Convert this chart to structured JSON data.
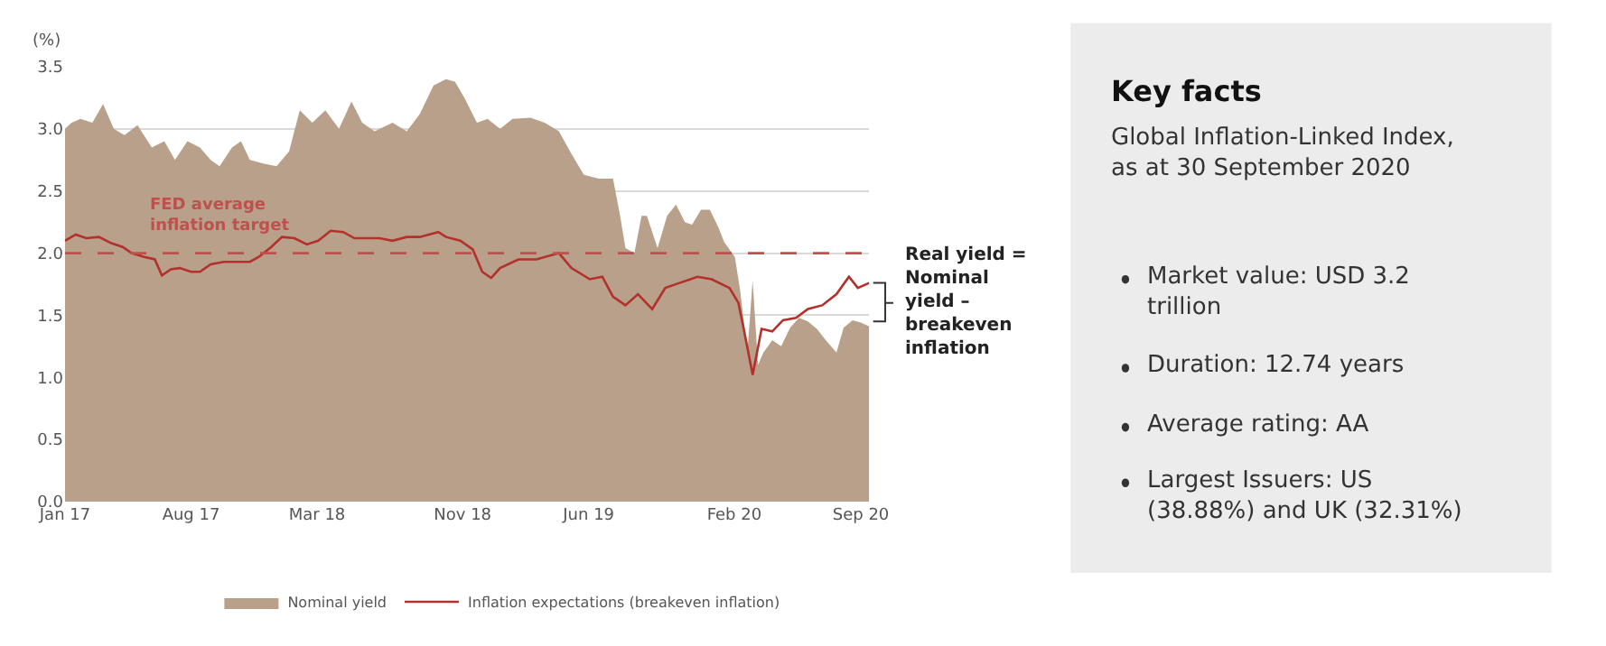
{
  "chart_data": [
    {
      "type": "area",
      "ylabel": "(%)",
      "xlim": [
        "2017-01-01",
        "2020-09-15"
      ],
      "xticks": [
        {
          "value": "2017-01-01",
          "label": "Jan 17"
        },
        {
          "value": "2017-08-01",
          "label": "Aug 17"
        },
        {
          "value": "2018-03-01",
          "label": "Mar 18"
        },
        {
          "value": "2018-11-01",
          "label": "Nov 18"
        },
        {
          "value": "2019-06-01",
          "label": "Jun 19"
        },
        {
          "value": "2020-02-01",
          "label": "Feb 20"
        },
        {
          "value": "2020-09-01",
          "label": "Sep 20"
        }
      ],
      "ylim": [
        0,
        3.5
      ],
      "yticks": [
        {
          "value": 0,
          "label": "0.0"
        },
        {
          "value": 0.5,
          "label": "0.5"
        },
        {
          "value": 1,
          "label": "1.0"
        },
        {
          "value": 1.5,
          "label": "1.5"
        },
        {
          "value": 2,
          "label": "2.0"
        },
        {
          "value": 2.5,
          "label": "2.5"
        },
        {
          "value": 3,
          "label": "3.0"
        },
        {
          "value": 3.5,
          "label": "3.5"
        }
      ],
      "grid": "y",
      "legend": "bottom",
      "series": [
        {
          "name": "Nominal yield",
          "color": "#b8a08a",
          "x": [
            "2017-01-01",
            "2017-01-12",
            "2017-01-27",
            "2017-02-16",
            "2017-03-06",
            "2017-03-24",
            "2017-04-11",
            "2017-05-03",
            "2017-05-27",
            "2017-06-17",
            "2017-07-05",
            "2017-07-26",
            "2017-08-16",
            "2017-09-03",
            "2017-09-18",
            "2017-10-09",
            "2017-10-24",
            "2017-11-08",
            "2017-12-02",
            "2017-12-23",
            "2018-01-13",
            "2018-01-31",
            "2018-02-21",
            "2018-03-15",
            "2018-04-07",
            "2018-04-28",
            "2018-05-16",
            "2018-06-06",
            "2018-07-06",
            "2018-07-30",
            "2018-08-21",
            "2018-09-13",
            "2018-10-04",
            "2018-10-19",
            "2018-11-04",
            "2018-11-25",
            "2018-12-13",
            "2019-01-03",
            "2019-01-24",
            "2019-02-23",
            "2019-03-19",
            "2019-04-12",
            "2019-05-03",
            "2019-05-24",
            "2019-06-18",
            "2019-07-12",
            "2019-07-24",
            "2019-08-02",
            "2019-08-17",
            "2019-08-29",
            "2019-09-07",
            "2019-09-25",
            "2019-10-11",
            "2019-10-26",
            "2019-11-10",
            "2019-11-22",
            "2019-12-07",
            "2019-12-22",
            "2020-01-06",
            "2020-01-15",
            "2020-02-02",
            "2020-02-11",
            "2020-02-23",
            "2020-03-03",
            "2020-03-12",
            "2020-03-21",
            "2020-04-05",
            "2020-04-20",
            "2020-05-05",
            "2020-05-20",
            "2020-06-04",
            "2020-06-19",
            "2020-07-04",
            "2020-07-22",
            "2020-08-03",
            "2020-08-18",
            "2020-09-02",
            "2020-09-15"
          ],
          "values": [
            3.0,
            3.05,
            3.08,
            3.05,
            3.2,
            3.0,
            2.95,
            3.03,
            2.85,
            2.9,
            2.75,
            2.9,
            2.85,
            2.75,
            2.7,
            2.85,
            2.9,
            2.75,
            2.72,
            2.7,
            2.82,
            3.15,
            3.05,
            3.15,
            3.0,
            3.22,
            3.05,
            2.98,
            3.05,
            2.98,
            3.12,
            3.35,
            3.4,
            3.38,
            3.25,
            3.05,
            3.08,
            3.0,
            3.08,
            3.09,
            3.05,
            2.98,
            2.8,
            2.63,
            2.6,
            2.6,
            2.3,
            2.04,
            2.0,
            2.3,
            2.3,
            2.04,
            2.3,
            2.39,
            2.25,
            2.23,
            2.35,
            2.35,
            2.2,
            2.09,
            1.97,
            1.7,
            1.2,
            1.78,
            1.1,
            1.2,
            1.3,
            1.25,
            1.4,
            1.48,
            1.45,
            1.39,
            1.3,
            1.2,
            1.4,
            1.46,
            1.44,
            1.41
          ]
        },
        {
          "name": "Inflation expectations (breakeven inflation)",
          "type": "line",
          "color": "#b3302b",
          "x": [
            "2017-01-01",
            "2017-01-19",
            "2017-02-06",
            "2017-02-27",
            "2017-03-20",
            "2017-04-08",
            "2017-04-23",
            "2017-05-14",
            "2017-06-01",
            "2017-06-13",
            "2017-06-28",
            "2017-07-13",
            "2017-08-01",
            "2017-08-16",
            "2017-09-03",
            "2017-09-25",
            "2017-10-16",
            "2017-11-08",
            "2017-11-23",
            "2017-12-14",
            "2018-01-01",
            "2018-01-22",
            "2018-02-12",
            "2018-03-03",
            "2018-03-24",
            "2018-04-14",
            "2018-05-03",
            "2018-05-24",
            "2018-06-14",
            "2018-07-06",
            "2018-07-30",
            "2018-08-21",
            "2018-09-21",
            "2018-10-04",
            "2018-10-28",
            "2018-11-18",
            "2018-12-04",
            "2018-12-19",
            "2019-01-03",
            "2019-02-03",
            "2019-03-05",
            "2019-04-12",
            "2019-05-03",
            "2019-06-03",
            "2019-06-24",
            "2019-07-12",
            "2019-08-02",
            "2019-08-23",
            "2019-09-16",
            "2019-10-08",
            "2019-11-01",
            "2019-12-01",
            "2019-12-25",
            "2020-01-24",
            "2020-02-08",
            "2020-02-17",
            "2020-03-03",
            "2020-03-18",
            "2020-04-05",
            "2020-04-23",
            "2020-05-15",
            "2020-06-04",
            "2020-06-28",
            "2020-07-22",
            "2020-08-12",
            "2020-08-27",
            "2020-09-15"
          ],
          "values": [
            2.1,
            2.15,
            2.12,
            2.13,
            2.08,
            2.05,
            2.0,
            1.97,
            1.95,
            1.82,
            1.87,
            1.88,
            1.85,
            1.85,
            1.91,
            1.93,
            1.93,
            1.93,
            1.97,
            2.05,
            2.13,
            2.12,
            2.07,
            2.1,
            2.18,
            2.17,
            2.12,
            2.12,
            2.12,
            2.1,
            2.13,
            2.13,
            2.17,
            2.13,
            2.1,
            2.03,
            1.85,
            1.8,
            1.88,
            1.95,
            1.95,
            2.0,
            1.88,
            1.79,
            1.81,
            1.65,
            1.58,
            1.67,
            1.55,
            1.72,
            1.76,
            1.81,
            1.79,
            1.72,
            1.6,
            1.39,
            1.02,
            1.39,
            1.37,
            1.46,
            1.48,
            1.55,
            1.58,
            1.67,
            1.81,
            1.72,
            1.76
          ]
        }
      ],
      "ref_lines": [
        {
          "axis": "y",
          "value": 2.0,
          "color": "#c0504d",
          "line_style": "dashed"
        }
      ],
      "annotations": [
        "FED average inflation target",
        "Real yield = Nominal yield – breakeven inflation"
      ]
    },
    {
      "type": "other",
      "title": "Key facts",
      "annotations": [
        "Global Inflation-Linked Index, as at 30 September 2020",
        "Market value: USD 3.2 trillion",
        "Duration: 12.74 years",
        "Average rating: AA",
        "Largest Issuers: US (38.88%) and UK (32.31%)"
      ]
    }
  ]
}
